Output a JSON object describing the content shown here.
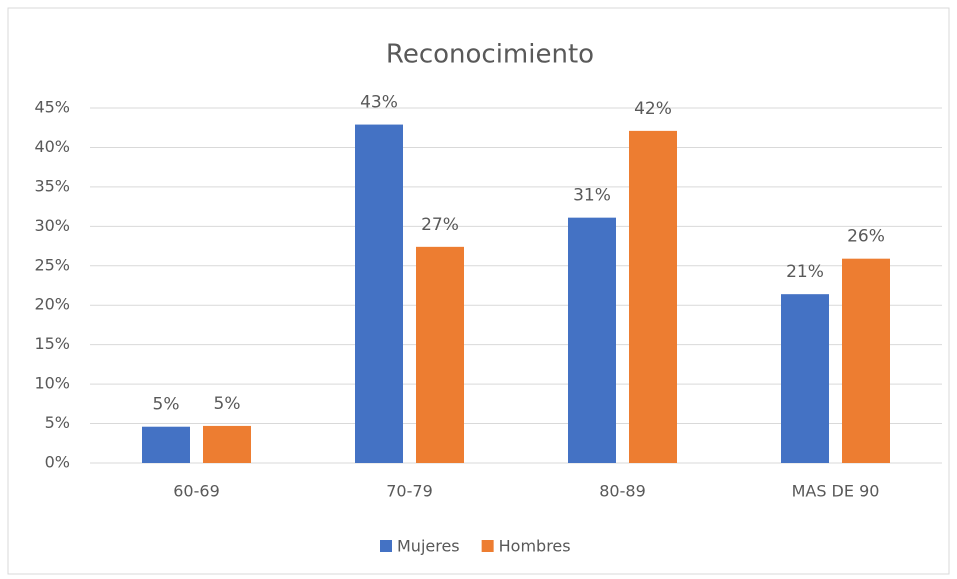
{
  "chart_data": {
    "type": "bar",
    "title": "Reconocimiento",
    "categories": [
      "60-69",
      "70-79",
      "80-89",
      "MAS DE 90"
    ],
    "series": [
      {
        "name": "Mujeres",
        "color": "#4472c4",
        "values": [
          4.6,
          42.9,
          31.1,
          21.4
        ],
        "value_labels": [
          "5%",
          "43%",
          "31%",
          "21%"
        ]
      },
      {
        "name": "Hombres",
        "color": "#ed7d31",
        "values": [
          4.7,
          27.4,
          42.1,
          25.9
        ],
        "value_labels": [
          "5%",
          "27%",
          "42%",
          "26%"
        ]
      }
    ],
    "ylim": [
      0,
      45
    ],
    "yticks": [
      {
        "value": 0,
        "label": "0%"
      },
      {
        "value": 5,
        "label": "5%"
      },
      {
        "value": 10,
        "label": "10%"
      },
      {
        "value": 15,
        "label": "15%"
      },
      {
        "value": 20,
        "label": "20%"
      },
      {
        "value": 25,
        "label": "25%"
      },
      {
        "value": 30,
        "label": "30%"
      },
      {
        "value": 35,
        "label": "35%"
      },
      {
        "value": 40,
        "label": "40%"
      },
      {
        "value": 45,
        "label": "45%"
      }
    ],
    "grid": true,
    "legend": "bottom"
  }
}
